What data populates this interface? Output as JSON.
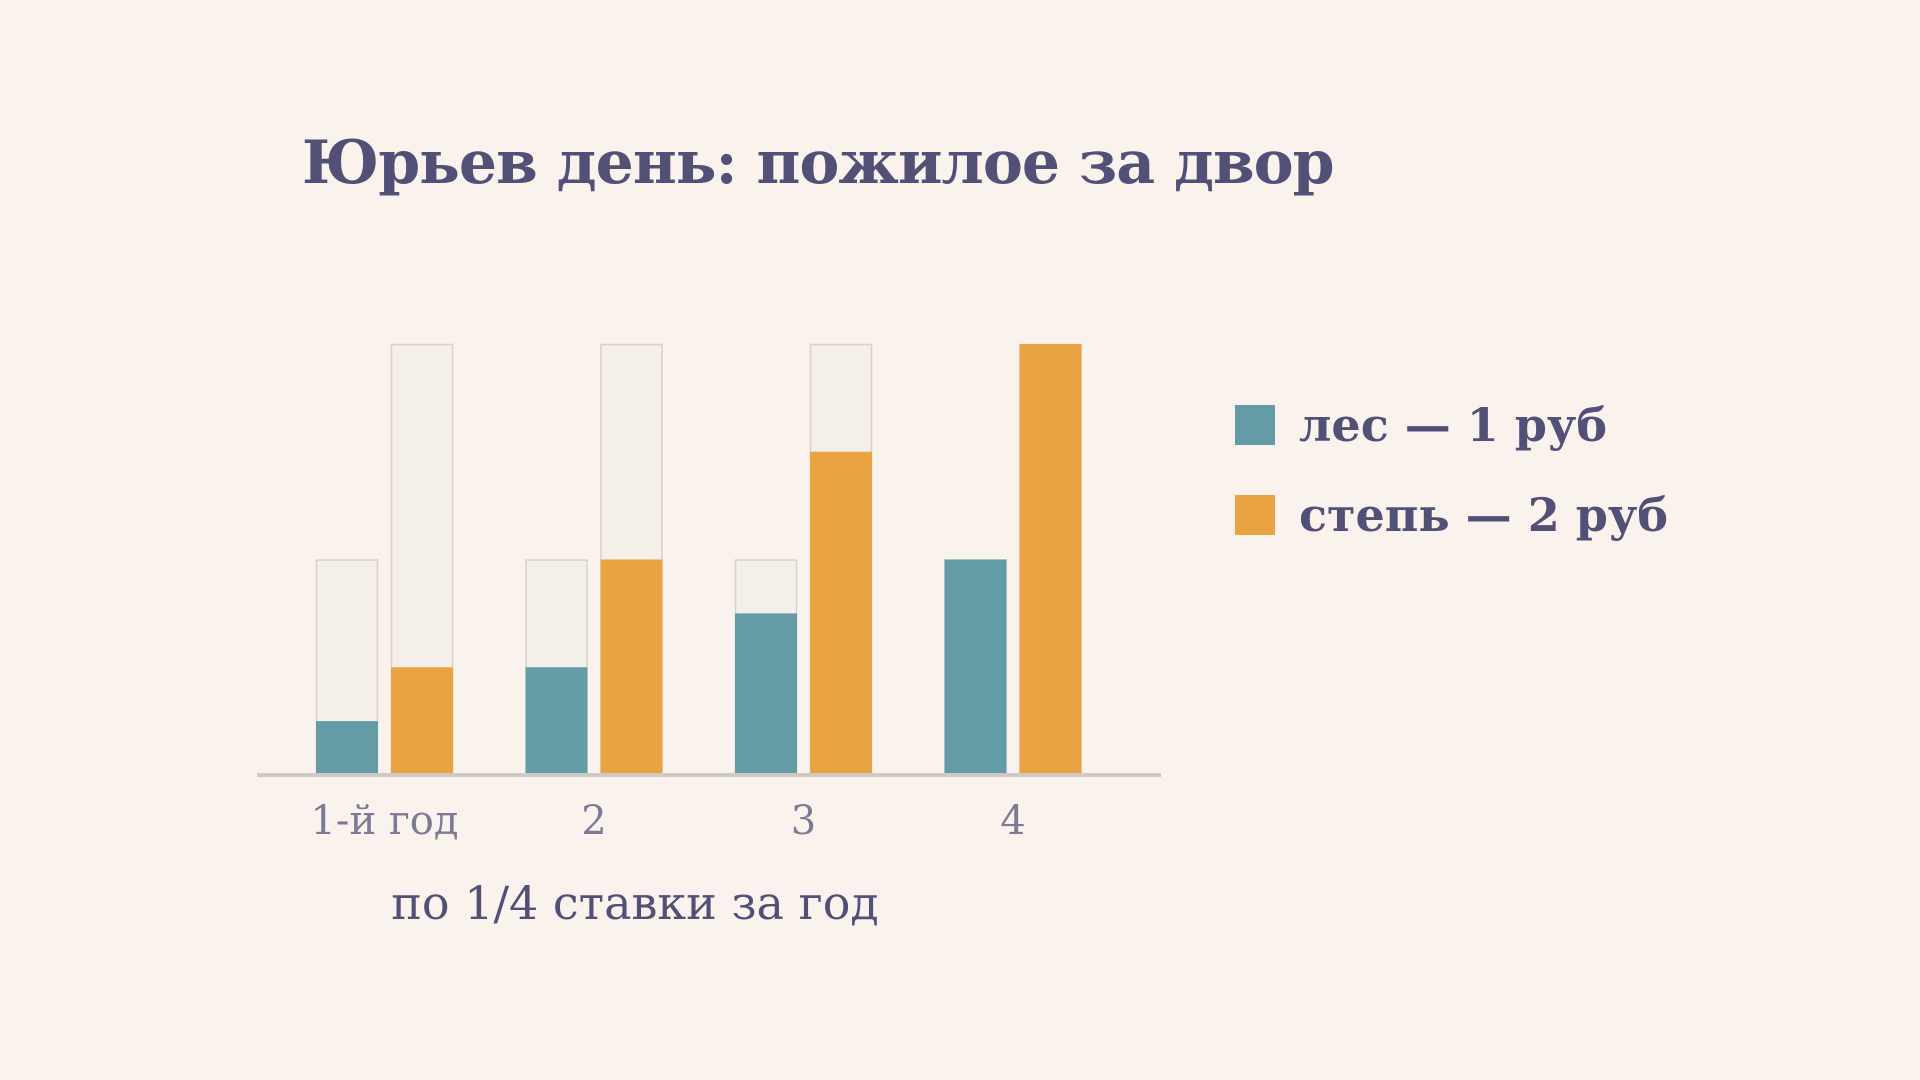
{
  "chart_data": {
    "type": "bar",
    "title": "Юрьев день: пожилое за двор",
    "xlabel": "по 1/4 ставки за год",
    "ylabel": "",
    "categories": [
      "1-й год",
      "2",
      "3",
      "4"
    ],
    "ylim": [
      0,
      2
    ],
    "series": [
      {
        "name": "лес — 1 руб",
        "values": [
          0.25,
          0.5,
          0.75,
          1.0
        ],
        "full": 1.0,
        "color": "#649ca6"
      },
      {
        "name": "степь — 2 руб",
        "values": [
          0.5,
          1.0,
          1.5,
          2.0
        ],
        "full": 2.0,
        "color": "#e9a441"
      }
    ],
    "remainder_color": "#f4efe8",
    "remainder_stroke": "#d6d1cb",
    "axis_color": "#cfcac6",
    "grid": false,
    "legend": "right"
  }
}
